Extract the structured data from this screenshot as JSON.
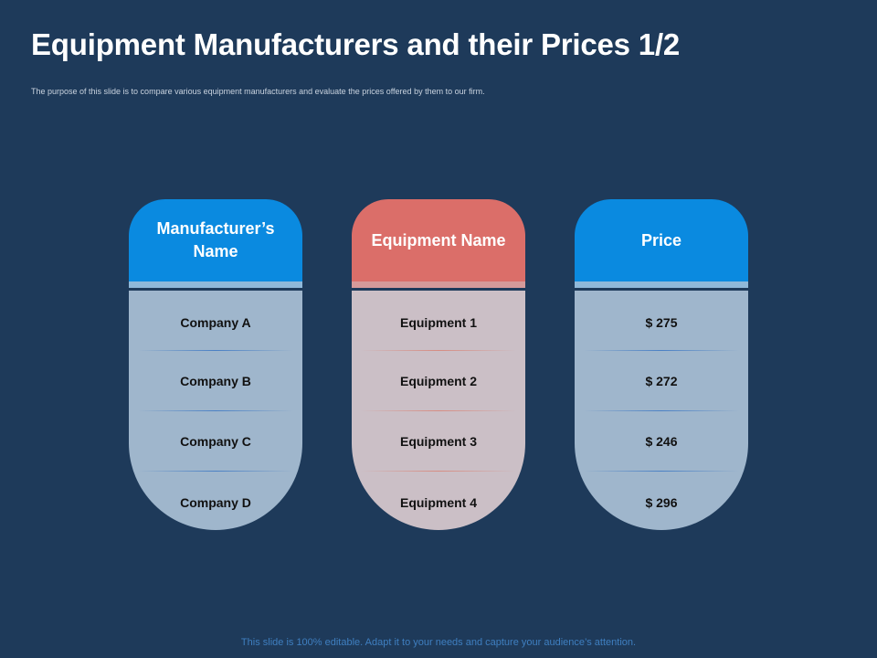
{
  "slide": {
    "title": "Equipment Manufacturers and their Prices 1/2",
    "subtitle": "The purpose of this slide is to compare various equipment manufacturers and evaluate the prices offered by them to our firm.",
    "footer": "This slide is 100% editable. Adapt it to your needs and capture your audience’s attention."
  },
  "columns": [
    {
      "header": "Manufacturer’s Name",
      "accent": "#0a8ae0",
      "rows": [
        "Company A",
        "Company B",
        "Company C",
        "Company D"
      ]
    },
    {
      "header": "Equipment Name",
      "accent": "#db6e69",
      "rows": [
        "Equipment 1",
        "Equipment 2",
        "Equipment 3",
        "Equipment 4"
      ]
    },
    {
      "header": "Price",
      "accent": "#0a8ae0",
      "rows": [
        "$ 275",
        "$ 272",
        "$ 246",
        "$ 296"
      ]
    }
  ]
}
